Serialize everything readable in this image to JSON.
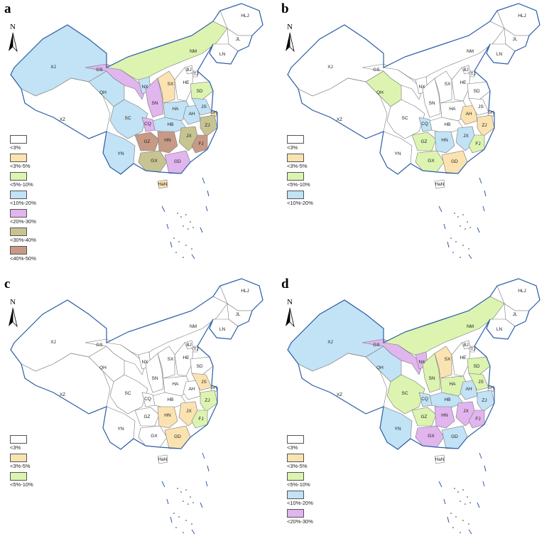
{
  "colors": {
    "lt3": "#ffffff",
    "c3_5": "#fbe3b1",
    "c5_10": "#dcf4b0",
    "c10_20": "#c2e2f5",
    "c20_30": "#e1b5ee",
    "c30_40": "#c7c491",
    "c40_50": "#c79a86",
    "border": "#2b5da8"
  },
  "north_label": "N",
  "province_codes": [
    "XJ",
    "XZ",
    "QH",
    "GS",
    "NM",
    "NX",
    "SN",
    "SX",
    "HE",
    "BJ",
    "TJ",
    "SD",
    "HLJ",
    "JL",
    "LN",
    "HA",
    "HB",
    "AH",
    "JS",
    "SH",
    "ZJ",
    "SC",
    "CQ",
    "GZ",
    "YN",
    "GX",
    "GD",
    "HN",
    "JX",
    "FJ",
    "HaN"
  ],
  "panels": [
    {
      "label": "a",
      "legend": [
        {
          "text": "<3%",
          "color": "lt3"
        },
        {
          "text": "<3%-5%",
          "color": "c3_5"
        },
        {
          "text": "<5%-10%",
          "color": "c5_10"
        },
        {
          "text": "<10%-20%",
          "color": "c10_20"
        },
        {
          "text": "<20%-30%",
          "color": "c20_30"
        },
        {
          "text": "<30%-40%",
          "color": "c30_40"
        },
        {
          "text": "<40%-50%",
          "color": "c40_50"
        }
      ],
      "fills": {
        "XJ": "c10_20",
        "XZ": "lt3",
        "QH": "c10_20",
        "GS": "c20_30",
        "NM": "c5_10",
        "NX": "c10_20",
        "SN": "c20_30",
        "SX": "c3_5",
        "HE": "lt3",
        "BJ": "lt3",
        "TJ": "lt3",
        "SD": "c5_10",
        "HLJ": "lt3",
        "JL": "lt3",
        "LN": "lt3",
        "HA": "c10_20",
        "HB": "c10_20",
        "AH": "c10_20",
        "JS": "c10_20",
        "SH": "c3_5",
        "ZJ": "c30_40",
        "SC": "c10_20",
        "CQ": "c20_30",
        "GZ": "c40_50",
        "YN": "c10_20",
        "GX": "c30_40",
        "GD": "c20_30",
        "HN": "c40_50",
        "JX": "c30_40",
        "FJ": "c40_50",
        "HaN": "c3_5"
      }
    },
    {
      "label": "b",
      "legend": [
        {
          "text": "<3%",
          "color": "lt3"
        },
        {
          "text": "<3%-5%",
          "color": "c3_5"
        },
        {
          "text": "<5%-10%",
          "color": "c5_10"
        },
        {
          "text": "<10%-20%",
          "color": "c10_20"
        }
      ],
      "fills": {
        "XJ": "lt3",
        "XZ": "lt3",
        "QH": "c5_10",
        "GS": "lt3",
        "NM": "lt3",
        "NX": "lt3",
        "SN": "lt3",
        "SX": "lt3",
        "HE": "lt3",
        "BJ": "lt3",
        "TJ": "lt3",
        "SD": "lt3",
        "HLJ": "lt3",
        "JL": "lt3",
        "LN": "lt3",
        "HA": "lt3",
        "HB": "lt3",
        "AH": "c3_5",
        "JS": "lt3",
        "SH": "lt3",
        "ZJ": "c3_5",
        "SC": "lt3",
        "CQ": "c10_20",
        "GZ": "c5_10",
        "YN": "lt3",
        "GX": "c5_10",
        "GD": "c3_5",
        "HN": "c10_20",
        "JX": "c10_20",
        "FJ": "c5_10",
        "HaN": "lt3"
      }
    },
    {
      "label": "c",
      "legend": [
        {
          "text": "<3%",
          "color": "lt3"
        },
        {
          "text": "<3%-5%",
          "color": "c3_5"
        },
        {
          "text": "<5%-10%",
          "color": "c5_10"
        }
      ],
      "fills": {
        "XJ": "lt3",
        "XZ": "lt3",
        "QH": "lt3",
        "GS": "lt3",
        "NM": "lt3",
        "NX": "lt3",
        "SN": "lt3",
        "SX": "lt3",
        "HE": "lt3",
        "BJ": "lt3",
        "TJ": "lt3",
        "SD": "lt3",
        "HLJ": "lt3",
        "JL": "lt3",
        "LN": "lt3",
        "HA": "lt3",
        "HB": "lt3",
        "AH": "lt3",
        "JS": "c3_5",
        "SH": "lt3",
        "ZJ": "c5_10",
        "SC": "lt3",
        "CQ": "lt3",
        "GZ": "lt3",
        "YN": "lt3",
        "GX": "lt3",
        "GD": "c3_5",
        "HN": "c3_5",
        "JX": "c3_5",
        "FJ": "c5_10",
        "HaN": "lt3"
      }
    },
    {
      "label": "d",
      "legend": [
        {
          "text": "<3%",
          "color": "lt3"
        },
        {
          "text": "<3%-5%",
          "color": "c3_5"
        },
        {
          "text": "<5%-10%",
          "color": "c5_10"
        },
        {
          "text": "<10%-20%",
          "color": "c10_20"
        },
        {
          "text": "<20%-30%",
          "color": "c20_30"
        }
      ],
      "fills": {
        "XJ": "c10_20",
        "XZ": "lt3",
        "QH": "c10_20",
        "GS": "c20_30",
        "NM": "c5_10",
        "NX": "c20_30",
        "SN": "c5_10",
        "SX": "c3_5",
        "HE": "lt3",
        "BJ": "lt3",
        "TJ": "lt3",
        "SD": "c5_10",
        "HLJ": "lt3",
        "JL": "lt3",
        "LN": "lt3",
        "HA": "c5_10",
        "HB": "c10_20",
        "AH": "c10_20",
        "JS": "c5_10",
        "SH": "lt3",
        "ZJ": "c10_20",
        "SC": "c5_10",
        "CQ": "c10_20",
        "GZ": "c5_10",
        "YN": "c10_20",
        "GX": "c20_30",
        "GD": "c10_20",
        "HN": "c20_30",
        "JX": "c20_30",
        "FJ": "c20_30",
        "HaN": "lt3"
      }
    }
  ]
}
